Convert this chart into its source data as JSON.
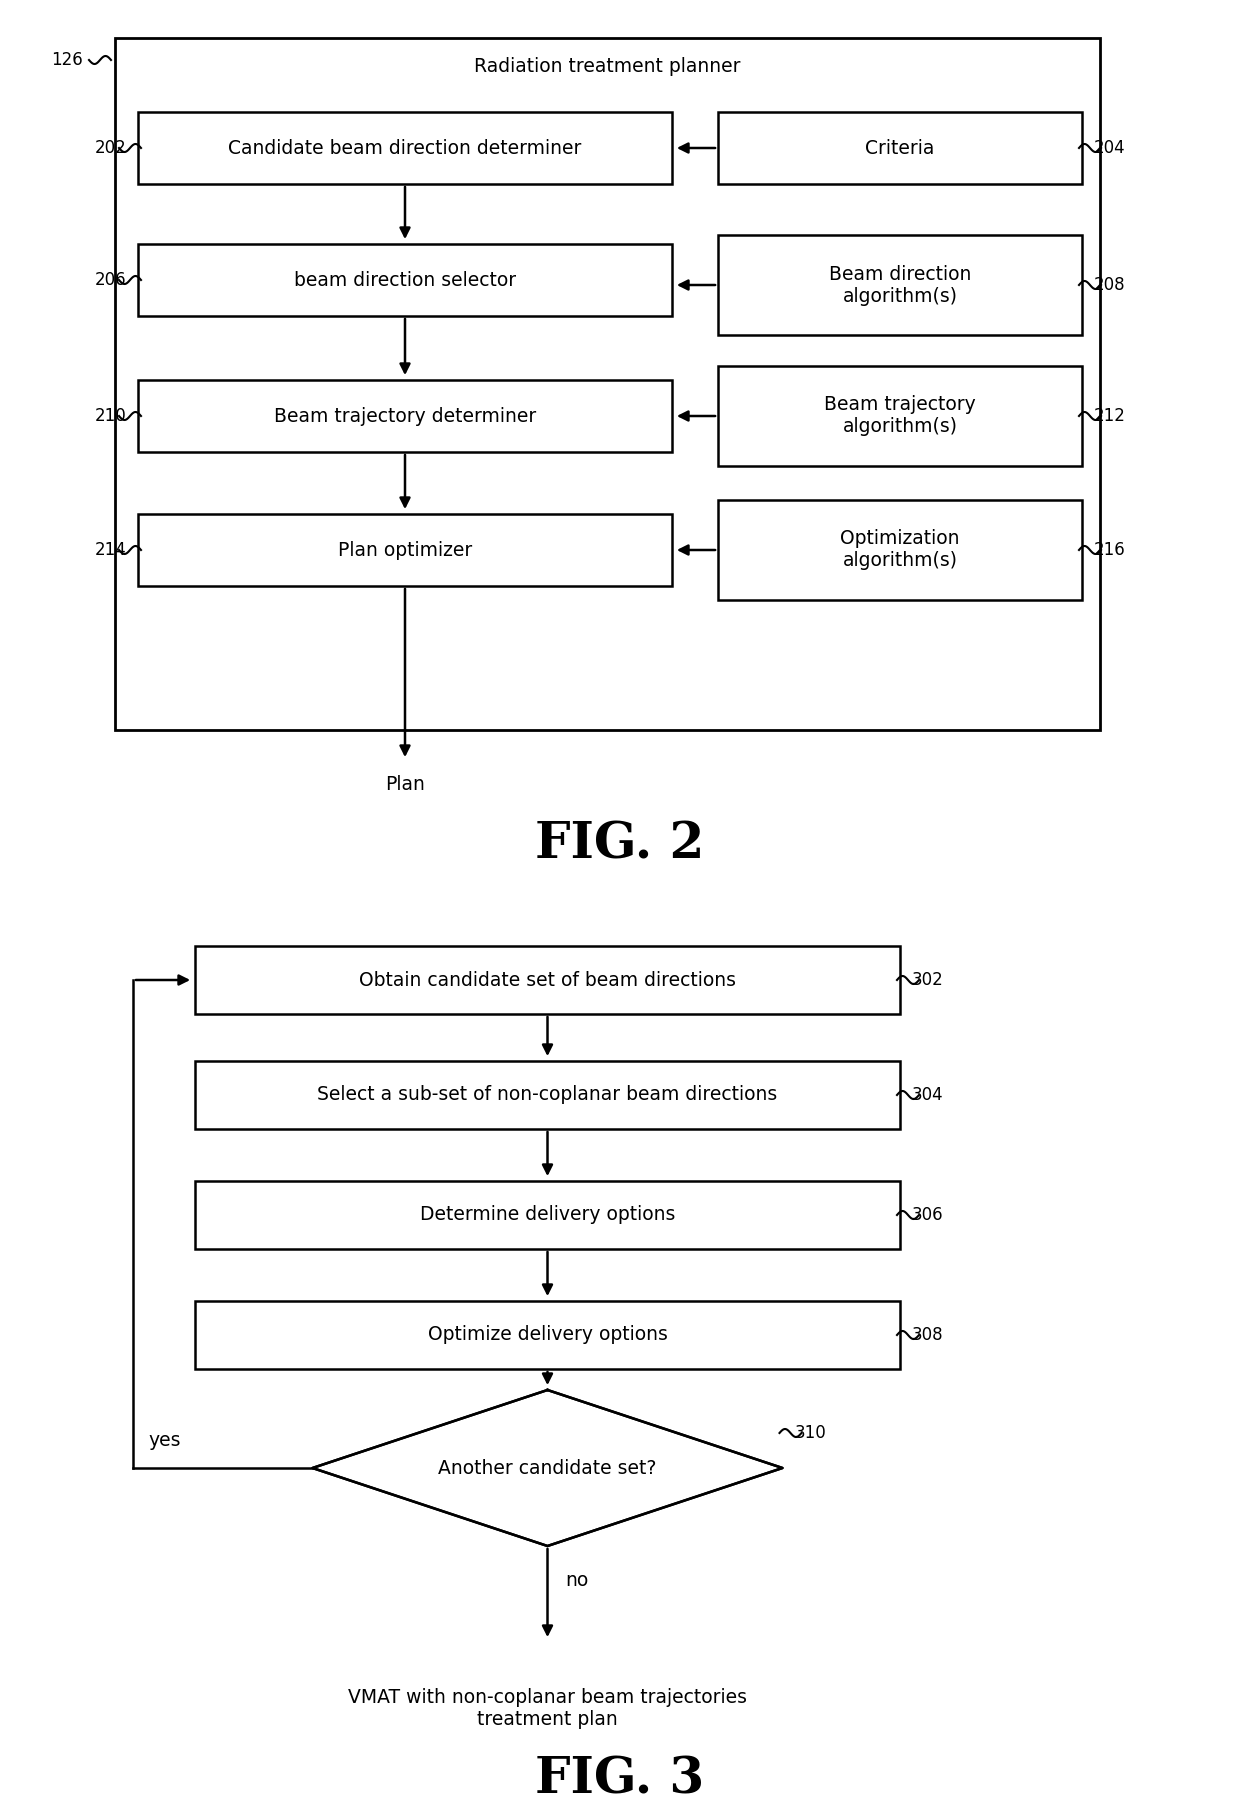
{
  "fig2": {
    "title": "FIG. 2",
    "outer_box_label": "Radiation treatment planner",
    "outer_label": "126",
    "main_boxes": [
      {
        "label": "Candidate beam direction determiner",
        "id": "202"
      },
      {
        "label": "beam direction selector",
        "id": "206"
      },
      {
        "label": "Beam trajectory determiner",
        "id": "210"
      },
      {
        "label": "Plan optimizer",
        "id": "214"
      }
    ],
    "side_boxes": [
      {
        "label": "Criteria",
        "id": "204"
      },
      {
        "label": "Beam direction\nalgorithm(s)",
        "id": "208"
      },
      {
        "label": "Beam trajectory\nalgorithm(s)",
        "id": "212"
      },
      {
        "label": "Optimization\nalgorithm(s)",
        "id": "216"
      }
    ],
    "plan_label": "Plan"
  },
  "fig3": {
    "title": "FIG. 3",
    "boxes": [
      {
        "label": "Obtain candidate set of beam directions",
        "id": "302"
      },
      {
        "label": "Select a sub-set of non-coplanar beam directions",
        "id": "304"
      },
      {
        "label": "Determine delivery options",
        "id": "306"
      },
      {
        "label": "Optimize delivery options",
        "id": "308"
      }
    ],
    "diamond": {
      "label": "Another candidate set?",
      "id": "310"
    },
    "yes_label": "yes",
    "no_label": "no",
    "end_label": "VMAT with non-coplanar beam trajectories\ntreatment plan"
  },
  "bg_color": "#ffffff",
  "line_color": "#000000"
}
